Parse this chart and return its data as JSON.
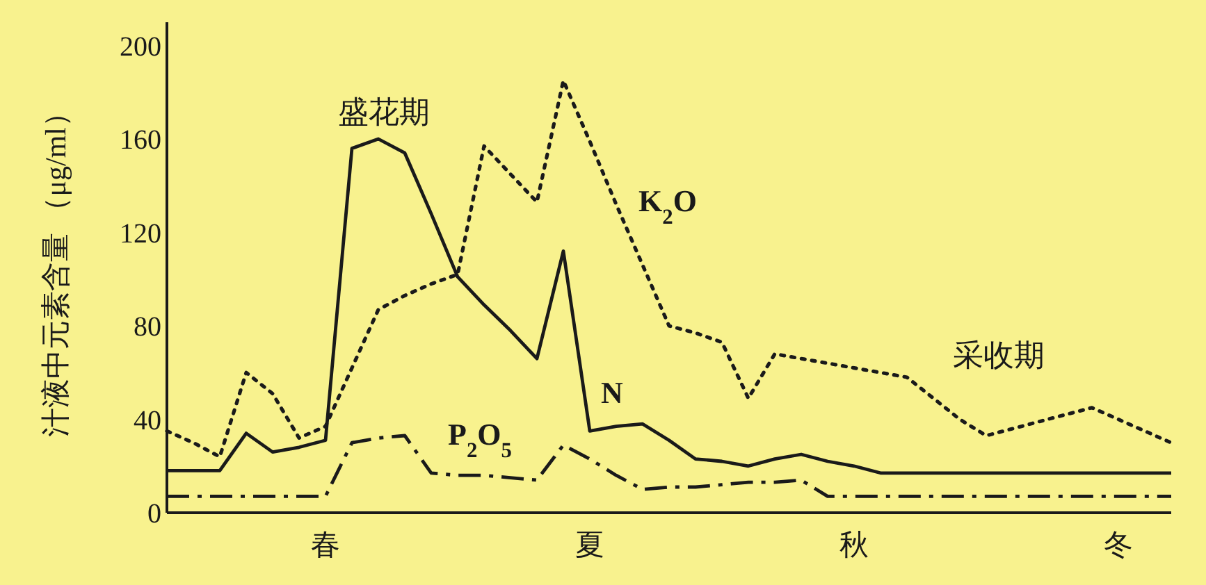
{
  "chart_data": {
    "type": "line",
    "ylabel": "汁液中元素含量 （μg/ml）",
    "ylim": [
      0,
      210
    ],
    "yticks": [
      0,
      40,
      80,
      120,
      160,
      200
    ],
    "categories": [
      null,
      null,
      null,
      null,
      null,
      null,
      "春",
      null,
      null,
      null,
      null,
      null,
      null,
      null,
      null,
      null,
      "夏",
      null,
      null,
      null,
      null,
      null,
      null,
      null,
      null,
      null,
      "秋",
      null,
      null,
      null,
      null,
      null,
      null,
      null,
      null,
      null,
      "冬",
      null,
      null
    ],
    "series": [
      {
        "name": "N",
        "color": "#1a1a1a",
        "line_style": "solid",
        "values": [
          18,
          18,
          18,
          34,
          26,
          28,
          31,
          156,
          160,
          154,
          128,
          101,
          89,
          78,
          66,
          112,
          35,
          37,
          38,
          31,
          23,
          22,
          20,
          23,
          25,
          22,
          20,
          17,
          17,
          17,
          17,
          17,
          17,
          17,
          17,
          17,
          17,
          17,
          17
        ]
      },
      {
        "name": "K$_{2}$O",
        "color": "#1a1a1a",
        "line_style": "dotted",
        "values": [
          35,
          30,
          24,
          60,
          51,
          32,
          37,
          62,
          87,
          93,
          98,
          102,
          157,
          145,
          133,
          185,
          159,
          132,
          106,
          80,
          77,
          73,
          49,
          68,
          66,
          64,
          62,
          60,
          58,
          49,
          40,
          33,
          36,
          39,
          42,
          45,
          40,
          35,
          30
        ]
      },
      {
        "name": "P$_{2}$O$_{5}$",
        "color": "#1a1a1a",
        "line_style": "dashdot",
        "values": [
          7,
          7,
          7,
          7,
          7,
          7,
          7,
          30,
          32,
          33,
          17,
          16,
          16,
          15,
          14,
          29,
          23,
          16,
          10,
          11,
          11,
          12,
          13,
          13,
          14,
          7,
          7,
          7,
          7,
          7,
          7,
          7,
          7,
          7,
          7,
          7,
          7,
          7,
          7
        ]
      }
    ],
    "annotations": [
      "盛花期",
      "采收期"
    ]
  }
}
